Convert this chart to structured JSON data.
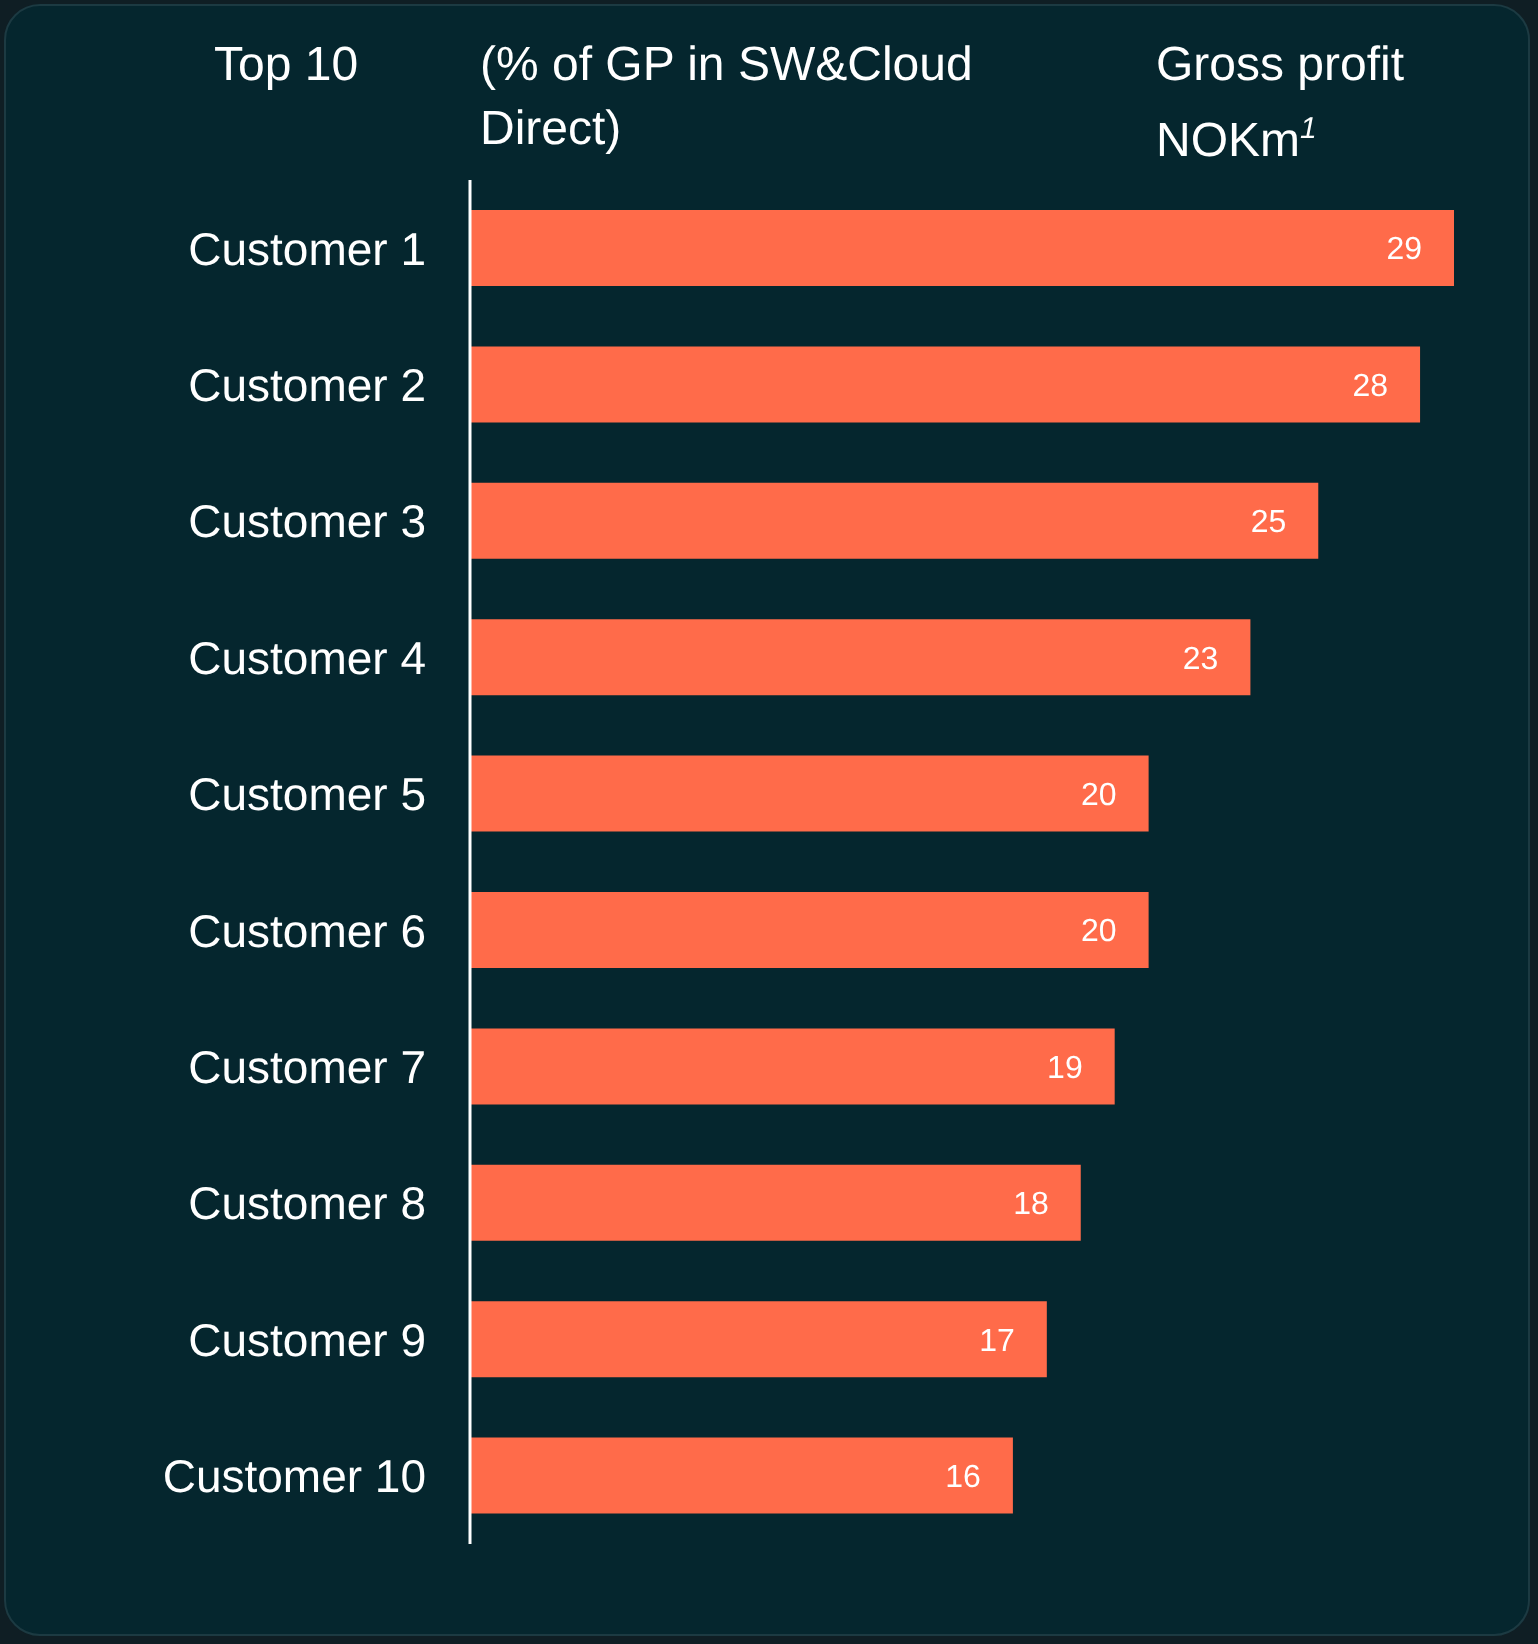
{
  "chart_data": {
    "type": "bar",
    "orientation": "horizontal",
    "ylabel": "Top 10",
    "title": "(% of GP in SW&Cloud Direct)",
    "annotations": [
      "Gross profit NOKm$^{1}$"
    ],
    "categories": [
      "Customer 1",
      "Customer 2",
      "Customer 3",
      "Customer 4",
      "Customer 5",
      "Customer 6",
      "Customer 7",
      "Customer 8",
      "Customer 9",
      "Customer 10"
    ],
    "values": [
      29,
      28,
      25,
      23,
      20,
      20,
      19,
      18,
      17,
      16
    ],
    "color": "#ff6b4a",
    "data_labels": true
  }
}
